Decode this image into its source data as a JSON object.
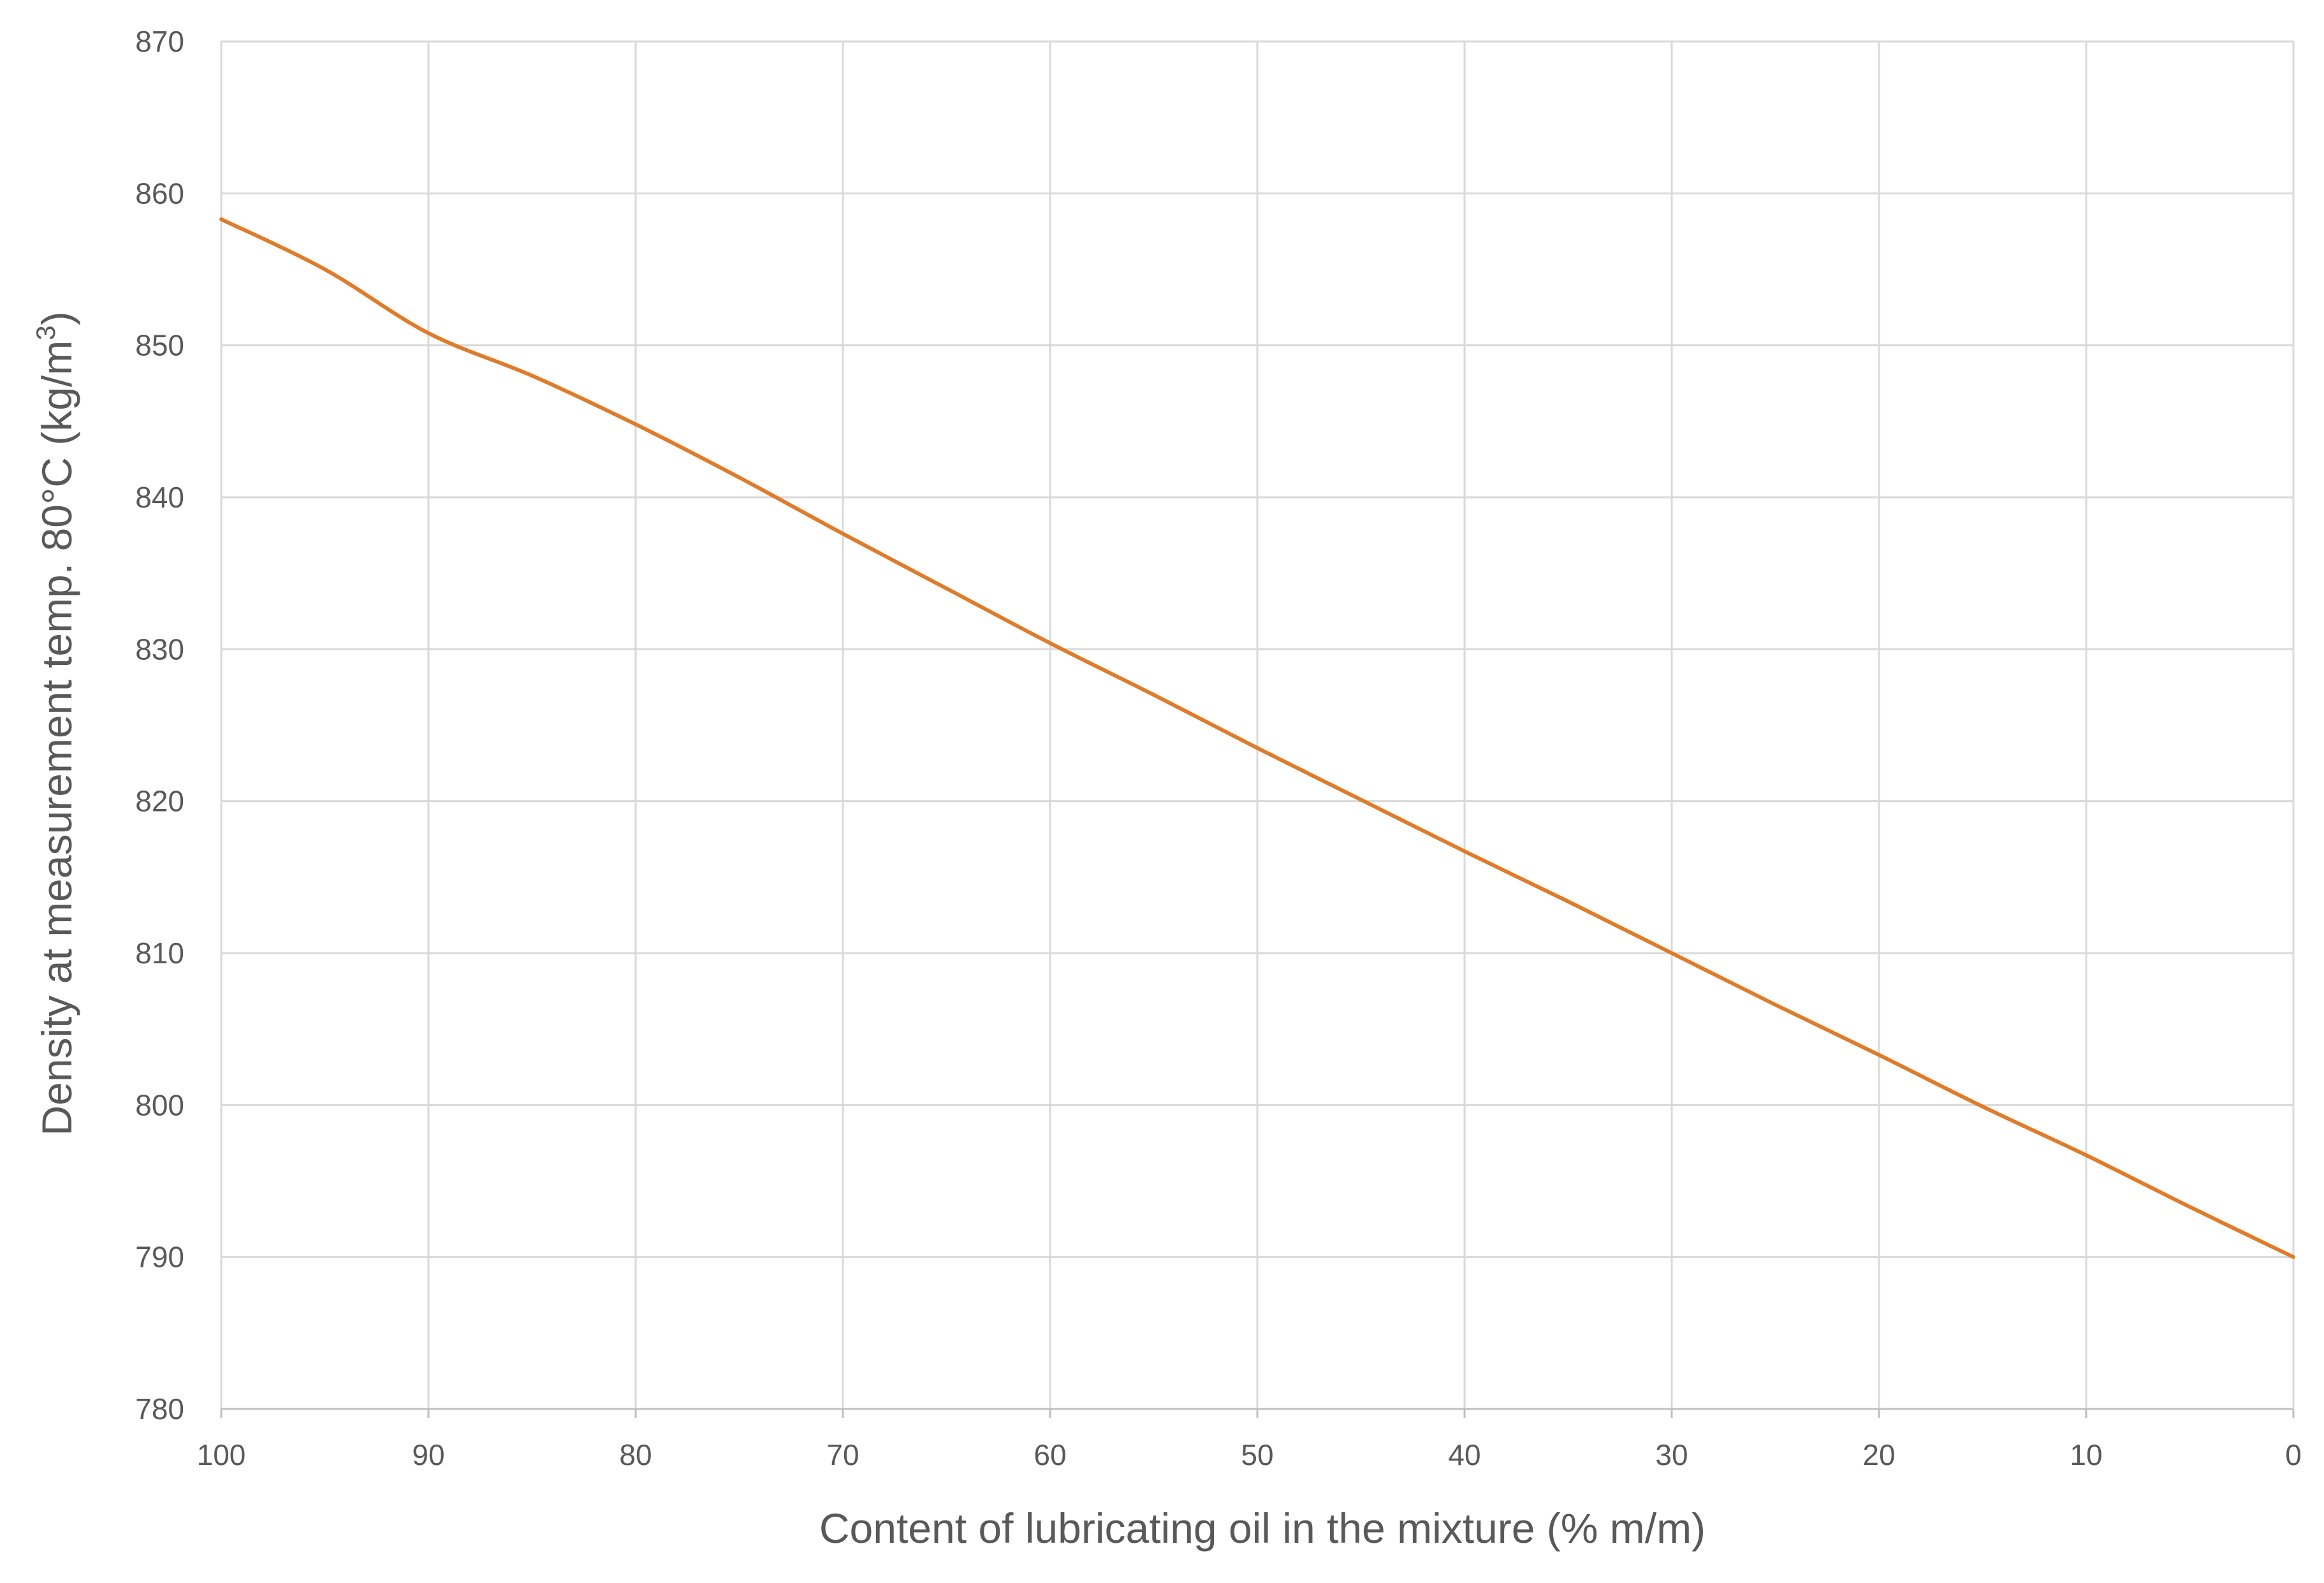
{
  "chart_data": {
    "type": "line",
    "title": "",
    "xlabel": "Content of lubricating oil in the mixture (% m/m)",
    "ylabel": {
      "main": "Density at measurement temp. 80°C (kg/m",
      "superscript": "3",
      "closing": ")"
    },
    "xlim": [
      100,
      0
    ],
    "ylim": [
      780,
      870
    ],
    "x_ticks": [
      "100",
      "90",
      "80",
      "70",
      "60",
      "50",
      "40",
      "30",
      "20",
      "10",
      "0"
    ],
    "y_ticks": [
      "870",
      "860",
      "850",
      "840",
      "830",
      "820",
      "810",
      "800",
      "790",
      "780"
    ],
    "grid": true,
    "legend": "none",
    "colors": {
      "line": "#E07B2A",
      "grid": "#d9d9d9",
      "text": "#595959"
    },
    "series": [
      {
        "x": [
          100,
          95,
          90,
          85,
          80,
          75,
          70,
          65,
          60,
          55,
          50,
          45,
          40,
          35,
          30,
          25,
          20,
          15,
          10,
          5,
          0
        ],
        "values": [
          858.3,
          855.0,
          850.8,
          848.0,
          844.8,
          841.3,
          837.6,
          834.0,
          830.4,
          827.0,
          823.5,
          820.1,
          816.7,
          813.4,
          810.0,
          806.6,
          803.3,
          799.9,
          796.7,
          793.3,
          790.0
        ]
      }
    ]
  }
}
